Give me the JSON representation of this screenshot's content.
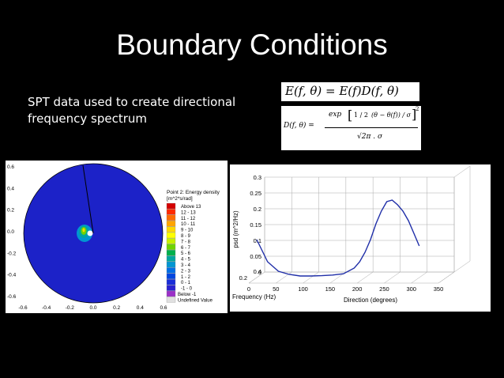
{
  "slide": {
    "title": "Boundary Conditions",
    "bullet_line1": "SPT data used to create directional",
    "bullet_line2": "frequency spectrum"
  },
  "equations": {
    "eq1": "E(f, θ) = E(f)D(f, θ)",
    "eq2_lhs": "D(f, θ) =",
    "eq2_exp": "exp",
    "eq2_half": "1 / 2",
    "eq2_inner": "(θ − θ(f)) / σ",
    "eq2_square": "2",
    "eq2_den": "√2π . σ"
  },
  "polar_plot": {
    "y_ticks": [
      "0.6",
      "0.4",
      "0.2",
      "0.0",
      "-0.2",
      "-0.4",
      "-0.6"
    ],
    "x_ticks": [
      "-0.6",
      "-0.4",
      "-0.2",
      "0.0",
      "0.2",
      "0.4",
      "0.6"
    ],
    "legend_title_1": "Point 2: Energy density",
    "legend_title_2": "[m^2*s/rad]",
    "legend_labels": [
      "Above 13",
      "12 - 13",
      "11 - 12",
      "10 - 11",
      "9 - 10",
      "8 - 9",
      "7 - 8",
      "6 - 7",
      "5 - 6",
      "4 - 5",
      "3 - 4",
      "2 - 3",
      "1 - 2",
      "0 - 1",
      "-1 - 0",
      "Below -1",
      "Undefined Value"
    ],
    "legend_colors": [
      "#d40000",
      "#ff2a00",
      "#ff6a00",
      "#ffa400",
      "#ffd800",
      "#ffff00",
      "#c8f000",
      "#6ed400",
      "#00b04c",
      "#00a6a0",
      "#0096d2",
      "#006ee6",
      "#0046e0",
      "#1a2ed8",
      "#2a22d0",
      "#9b30c8",
      "#e0e0e0"
    ],
    "disk_color": "#1c22c8"
  },
  "chart_data": {
    "type": "line",
    "view": "3d",
    "title": "",
    "xlabel": "Direction (degrees)",
    "ylabel": "psd (m^2/Hz)",
    "zlabel": "Frequency (Hz)",
    "x_ticks": [
      "0",
      "50",
      "100",
      "150",
      "200",
      "250",
      "300",
      "350"
    ],
    "y_ticks": [
      "0",
      "0.05",
      "0.1",
      "0.15",
      "0.2",
      "0.25",
      "0.3"
    ],
    "z_ticks": [
      "0.2",
      "0.4"
    ],
    "ylim": [
      0,
      0.3
    ],
    "series": [
      {
        "color": "#1f2ea8",
        "x": [
          0,
          20,
          40,
          60,
          80,
          100,
          120,
          140,
          160,
          180,
          190,
          200,
          210,
          220,
          230,
          240,
          250,
          260,
          270,
          280,
          290,
          300
        ],
        "y": [
          0.12,
          0.05,
          0.02,
          0.01,
          0.005,
          0.005,
          0.006,
          0.008,
          0.012,
          0.03,
          0.05,
          0.08,
          0.12,
          0.17,
          0.21,
          0.24,
          0.245,
          0.23,
          0.21,
          0.18,
          0.14,
          0.1
        ]
      }
    ]
  }
}
